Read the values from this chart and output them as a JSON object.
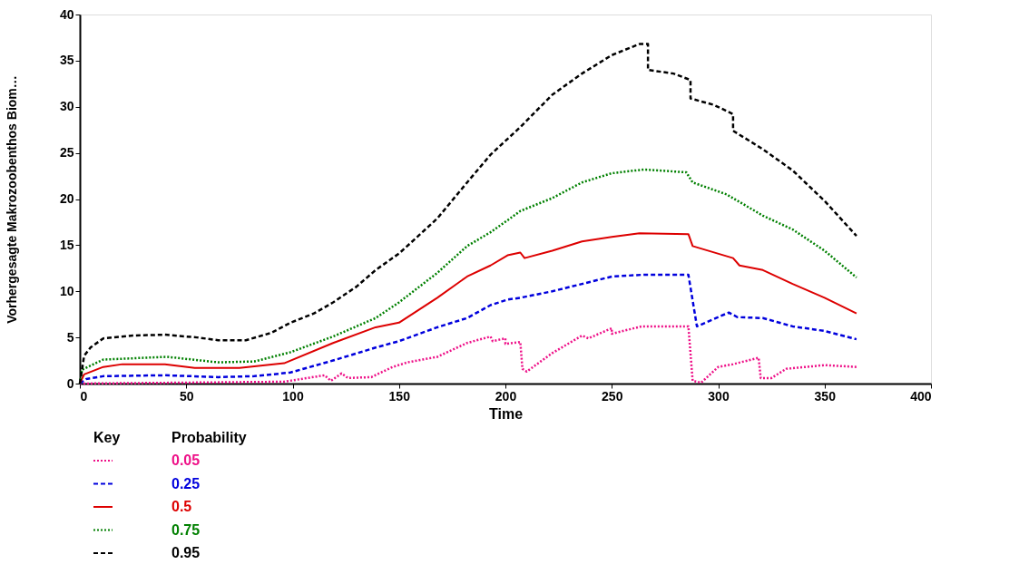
{
  "chart_data": {
    "type": "line",
    "xlabel": "Time",
    "ylabel": "Vorhergesagte Makrozoobenthos Biom…",
    "legend_title": "Probability",
    "annotations": [
      "Key"
    ],
    "legend": "bottom left",
    "grid": false,
    "marker": "none",
    "xlim": [
      0,
      400
    ],
    "xticks": [
      0,
      50,
      100,
      150,
      200,
      250,
      300,
      350,
      400
    ],
    "ylim": [
      0,
      40
    ],
    "yticks": [
      0,
      5,
      10,
      15,
      20,
      25,
      30,
      35,
      40
    ],
    "series": [
      {
        "name": "0.05",
        "color": "#ee1188",
        "line_style": "dotted",
        "x": [
          0,
          96,
          115,
          118,
          123,
          126,
          137,
          147,
          154,
          168,
          182,
          193,
          194,
          200,
          200,
          207,
          208,
          210,
          222,
          236,
          239,
          250,
          250,
          264,
          286,
          288,
          292,
          300,
          307,
          319,
          320,
          325,
          332,
          350,
          365
        ],
        "values": [
          0,
          0.2,
          0.9,
          0.3,
          1.1,
          0.6,
          0.7,
          1.8,
          2.3,
          2.9,
          4.4,
          5.1,
          4.6,
          4.9,
          4.3,
          4.5,
          1.6,
          1.3,
          3.3,
          5.2,
          4.9,
          6.0,
          5.4,
          6.2,
          6.2,
          0.3,
          0.1,
          1.8,
          2.1,
          2.8,
          0.6,
          0.6,
          1.6,
          2.0,
          1.8
        ]
      },
      {
        "name": "0.25",
        "color": "#0000dd",
        "line_style": "dashed",
        "x": [
          0,
          3,
          11,
          40,
          65,
          82,
          99,
          119,
          139,
          150,
          168,
          182,
          193,
          201,
          207,
          222,
          236,
          250,
          265,
          286,
          290,
          305,
          309,
          321,
          335,
          350,
          365
        ],
        "values": [
          0,
          0.5,
          0.8,
          0.9,
          0.7,
          0.8,
          1.2,
          2.5,
          3.9,
          4.6,
          6.1,
          7.1,
          8.5,
          9.1,
          9.3,
          10.0,
          10.8,
          11.6,
          11.8,
          11.8,
          6.2,
          7.7,
          7.2,
          7.1,
          6.2,
          5.7,
          4.8
        ]
      },
      {
        "name": "0.5",
        "color": "#dd0000",
        "line_style": "solid",
        "x": [
          0,
          2,
          11,
          20,
          40,
          54,
          75,
          96,
          119,
          139,
          150,
          168,
          182,
          193,
          201,
          207,
          209,
          222,
          236,
          250,
          263,
          286,
          288,
          307,
          310,
          321,
          335,
          350,
          365
        ],
        "values": [
          0,
          1.0,
          1.8,
          2.1,
          2.1,
          1.7,
          1.7,
          2.2,
          4.4,
          6.1,
          6.6,
          9.3,
          11.6,
          12.8,
          13.9,
          14.2,
          13.6,
          14.4,
          15.4,
          15.9,
          16.3,
          16.2,
          14.9,
          13.6,
          12.8,
          12.3,
          10.8,
          9.3,
          7.6
        ]
      },
      {
        "name": "0.75",
        "color": "#008000",
        "line_style": "dotted",
        "x": [
          0,
          1,
          11,
          41,
          65,
          82,
          99,
          119,
          139,
          150,
          168,
          182,
          193,
          201,
          207,
          222,
          236,
          250,
          265,
          285,
          288,
          304,
          321,
          335,
          350,
          365
        ],
        "values": [
          0,
          1.5,
          2.6,
          2.9,
          2.3,
          2.4,
          3.4,
          5.1,
          7.1,
          8.8,
          12.0,
          14.9,
          16.4,
          17.7,
          18.7,
          20.1,
          21.8,
          22.8,
          23.2,
          22.9,
          21.8,
          20.5,
          18.2,
          16.7,
          14.4,
          11.5
        ]
      },
      {
        "name": "0.95",
        "color": "#000000",
        "line_style": "dashed",
        "x": [
          0,
          2,
          5,
          11,
          25,
          40,
          55,
          65,
          78,
          90,
          99,
          110,
          119,
          130,
          139,
          150,
          160,
          168,
          182,
          193,
          207,
          222,
          236,
          250,
          263,
          267,
          267,
          279,
          287,
          287,
          298,
          307,
          307,
          321,
          335,
          350,
          365
        ],
        "values": [
          0,
          3.0,
          3.9,
          4.9,
          5.2,
          5.3,
          5.0,
          4.7,
          4.7,
          5.5,
          6.6,
          7.6,
          8.8,
          10.5,
          12.3,
          14.1,
          16.2,
          17.9,
          21.8,
          24.8,
          27.8,
          31.3,
          33.6,
          35.6,
          36.8,
          36.8,
          34.0,
          33.6,
          32.9,
          30.9,
          30.2,
          29.2,
          27.4,
          25.4,
          23.1,
          19.8,
          16.0
        ]
      }
    ]
  }
}
